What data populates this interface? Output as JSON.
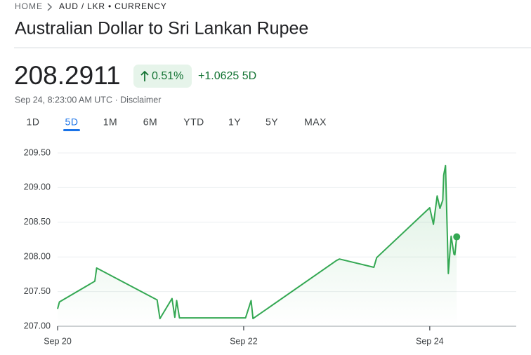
{
  "header": {
    "breadcrumb_home": "HOME",
    "breadcrumb_pair": "AUD / LKR • CURRENCY",
    "title": "Australian Dollar to Sri Lankan Rupee"
  },
  "quote": {
    "price": "208.2911",
    "change_percent": "0.51%",
    "change_5d": "+1.0625 5D",
    "timestamp": "Sep 24, 8:23:00 AM UTC · Disclaimer"
  },
  "tabs": {
    "items": [
      "1D",
      "5D",
      "1M",
      "6M",
      "YTD",
      "1Y",
      "5Y",
      "MAX"
    ],
    "selected": 1
  },
  "chart_data": {
    "type": "line",
    "x": [
      20.0,
      20.02,
      20.4,
      20.42,
      21.07,
      21.1,
      21.23,
      21.26,
      21.28,
      21.31,
      22.02,
      22.08,
      22.1,
      23.0,
      23.03,
      23.4,
      23.43,
      24.0,
      24.04,
      24.08,
      24.11,
      24.14,
      24.15,
      24.17,
      24.2,
      24.23,
      24.26,
      24.27,
      24.29
    ],
    "series": [
      {
        "color": "#34a853",
        "values": [
          207.25,
          207.35,
          207.65,
          207.84,
          207.38,
          207.11,
          207.4,
          207.13,
          207.37,
          207.12,
          207.12,
          207.37,
          207.11,
          207.95,
          207.97,
          207.85,
          207.99,
          208.71,
          208.47,
          208.88,
          208.7,
          208.82,
          209.18,
          209.32,
          207.76,
          208.3,
          208.04,
          208.03,
          208.29
        ]
      }
    ],
    "xlim": [
      20,
      24.93
    ],
    "xticks": [
      {
        "value": 20,
        "label": "Sep 20"
      },
      {
        "value": 22,
        "label": "Sep 22"
      },
      {
        "value": 24,
        "label": "Sep 24"
      }
    ],
    "ylim": [
      207,
      209.5
    ],
    "yticks": [
      {
        "value": 207,
        "label": "207.00"
      },
      {
        "value": 207.5,
        "label": "207.50"
      },
      {
        "value": 208,
        "label": "208.00"
      },
      {
        "value": 208.5,
        "label": "208.50"
      },
      {
        "value": 209,
        "label": "209.00"
      },
      {
        "value": 209.5,
        "label": "209.50"
      }
    ],
    "grid": true
  }
}
